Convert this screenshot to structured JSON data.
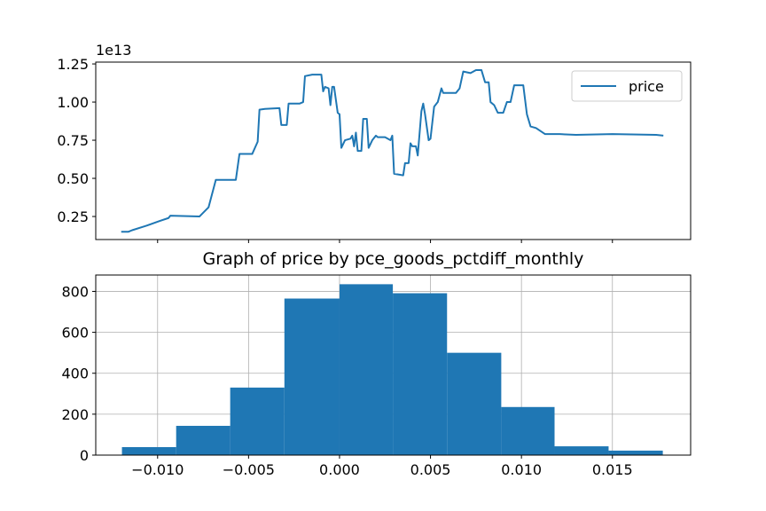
{
  "chart_data": [
    {
      "type": "line",
      "offset_text": "1e13",
      "x": [
        -0.012,
        -0.0116,
        -0.0114,
        -0.0106,
        -0.0099,
        -0.0094,
        -0.0093,
        -0.0077,
        -0.0072,
        -0.0068,
        -0.0062,
        -0.0057,
        -0.0055,
        -0.0048,
        -0.0045,
        -0.0044,
        -0.0041,
        -0.0033,
        -0.0032,
        -0.0029,
        -0.0028,
        -0.0022,
        -0.002,
        -0.0019,
        -0.0015,
        -0.001,
        -0.0009,
        -0.0008,
        -0.0006,
        -0.0005,
        -0.0004,
        -0.0003,
        -0.0001,
        0.0,
        0.0001,
        0.0003,
        0.0006,
        0.0007,
        0.0008,
        0.0009,
        0.001,
        0.0012,
        0.0013,
        0.0015,
        0.0016,
        0.0018,
        0.002,
        0.0021,
        0.0025,
        0.0028,
        0.0029,
        0.003,
        0.0035,
        0.0036,
        0.0038,
        0.0039,
        0.004,
        0.0042,
        0.0043,
        0.0045,
        0.0046,
        0.0047,
        0.0049,
        0.005,
        0.0052,
        0.0054,
        0.0056,
        0.0057,
        0.0064,
        0.0066,
        0.0068,
        0.0072,
        0.0075,
        0.0078,
        0.008,
        0.0082,
        0.0083,
        0.0085,
        0.0087,
        0.009,
        0.0092,
        0.0094,
        0.0096,
        0.0101,
        0.0103,
        0.0105,
        0.0108,
        0.0113,
        0.0121,
        0.013,
        0.015,
        0.0174,
        0.0178
      ],
      "series": [
        {
          "name": "price",
          "color": "#1f77b4",
          "values": [
            1500000000000.0,
            1500000000000.0,
            1600000000000.0,
            1900000000000.0,
            2200000000000.0,
            2400000000000.0,
            2550000000000.0,
            2500000000000.0,
            3100000000000.0,
            4900000000000.0,
            4900000000000.0,
            4900000000000.0,
            6600000000000.0,
            6600000000000.0,
            7400000000000.0,
            9500000000000.0,
            9550000000000.0,
            9600000000000.0,
            8500000000000.0,
            8500000000000.0,
            9900000000000.0,
            9900000000000.0,
            10000000000000.0,
            11700000000000.0,
            11800000000000.0,
            11800000000000.0,
            10700000000000.0,
            11000000000000.0,
            10900000000000.0,
            9800000000000.0,
            11000000000000.0,
            11000000000000.0,
            9300000000000.0,
            9200000000000.0,
            7000000000000.0,
            7500000000000.0,
            7600000000000.0,
            7800000000000.0,
            7100000000000.0,
            8000000000000.0,
            6800000000000.0,
            6800000000000.0,
            8900000000000.0,
            8900000000000.0,
            7000000000000.0,
            7500000000000.0,
            7800000000000.0,
            7700000000000.0,
            7700000000000.0,
            7500000000000.0,
            7800000000000.0,
            5300000000000.0,
            5200000000000.0,
            6000000000000.0,
            6000000000000.0,
            7300000000000.0,
            7100000000000.0,
            7100000000000.0,
            6500000000000.0,
            9400000000000.0,
            9900000000000.0,
            9200000000000.0,
            7500000000000.0,
            7600000000000.0,
            9700000000000.0,
            10000000000000.0,
            10900000000000.0,
            10600000000000.0,
            10600000000000.0,
            10900000000000.0,
            12000000000000.0,
            11900000000000.0,
            12100000000000.0,
            12100000000000.0,
            11300000000000.0,
            11300000000000.0,
            10000000000000.0,
            9800000000000.0,
            9300000000000.0,
            9300000000000.0,
            10000000000000.0,
            10000000000000.0,
            11100000000000.0,
            11100000000000.0,
            9200000000000.0,
            8400000000000.0,
            8300000000000.0,
            7900000000000.0,
            7900000000000.0,
            7850000000000.0,
            7900000000000.0,
            7850000000000.0,
            7800000000000.0
          ]
        }
      ],
      "xlim": [
        -0.0134,
        0.0193
      ],
      "ylim": [
        990000000000.0,
        12620000000000.0
      ],
      "xticks": [
        -0.01,
        -0.005,
        0,
        0.005,
        0.01,
        0.015
      ],
      "yticks": [
        {
          "value": 2500000000000.0,
          "label": "0.25"
        },
        {
          "value": 5000000000000.0,
          "label": "0.50"
        },
        {
          "value": 7500000000000.0,
          "label": "0.75"
        },
        {
          "value": 10000000000000.0,
          "label": "1.00"
        },
        {
          "value": 12500000000000.0,
          "label": "1.25"
        }
      ],
      "legend": "upper right",
      "grid": false
    },
    {
      "type": "histogram",
      "title": "Graph of price by pce_goods_pctdiff_monthly",
      "bins": [
        -0.01196,
        -0.00898,
        -0.00601,
        -0.00303,
        0.0,
        0.00293,
        0.00591,
        0.00889,
        0.01182,
        0.01479,
        0.01777
      ],
      "values": [
        39,
        143,
        330,
        765,
        835,
        791,
        500,
        235,
        43,
        22
      ],
      "color": "#1f77b4",
      "xlim": [
        -0.0134,
        0.0193
      ],
      "ylim": [
        0,
        880
      ],
      "xticks": [
        {
          "value": -0.01,
          "label": "−0.010"
        },
        {
          "value": -0.005,
          "label": "−0.005"
        },
        {
          "value": 0,
          "label": "0.000"
        },
        {
          "value": 0.005,
          "label": "0.005"
        },
        {
          "value": 0.01,
          "label": "0.010"
        },
        {
          "value": 0.015,
          "label": "0.015"
        }
      ],
      "yticks": [
        0,
        200,
        400,
        600,
        800
      ],
      "grid": true
    }
  ]
}
